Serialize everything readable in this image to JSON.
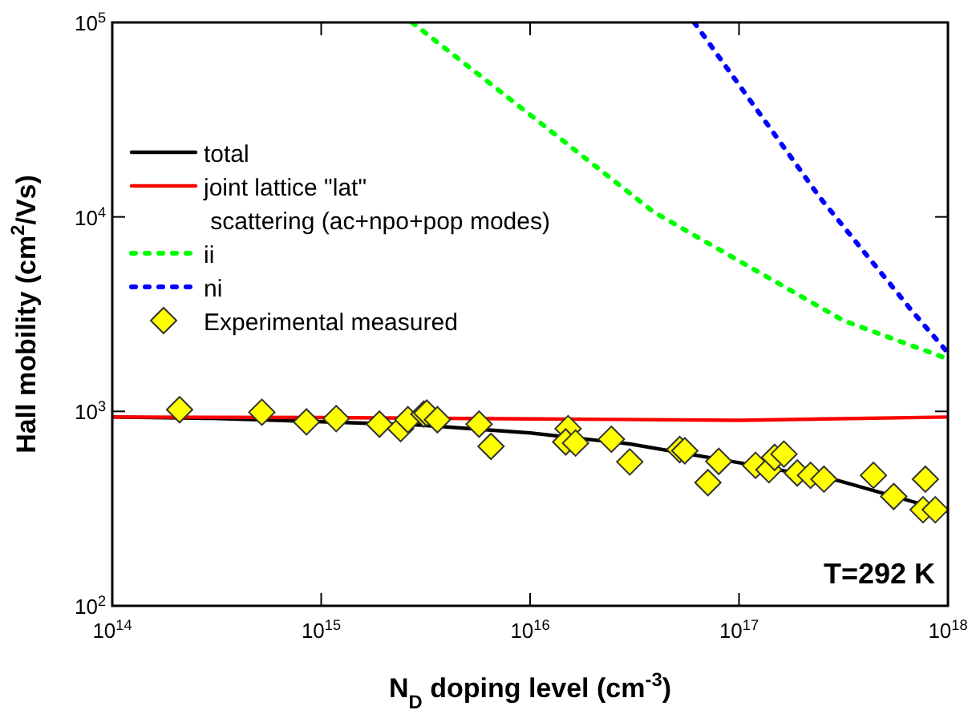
{
  "chart_data": {
    "type": "line",
    "xlabel": "N$_{D}$ doping level (cm$^{-3}$)",
    "ylabel": "Hall mobility (cm$^{2}$/Vs)",
    "log": "xy",
    "xlim": [
      100000000000000.0,
      1e+18
    ],
    "ylim": [
      100,
      100000
    ],
    "xticks": [
      {
        "value": 100000000000000.0,
        "label": "10$^{14}$"
      },
      {
        "value": 1000000000000000.0,
        "label": "10$^{15}$"
      },
      {
        "value": 1e+16,
        "label": "10$^{16}$"
      },
      {
        "value": 1e+17,
        "label": "10$^{17}$"
      },
      {
        "value": 1e+18,
        "label": "10$^{18}$"
      }
    ],
    "yticks": [
      {
        "value": 100,
        "label": "10$^{2}$"
      },
      {
        "value": 1000,
        "label": "10$^{3}$"
      },
      {
        "value": 10000,
        "label": "10$^{4}$"
      },
      {
        "value": 100000,
        "label": "10$^{5}$"
      }
    ],
    "grid": false,
    "legend": "left",
    "annotations": [
      "T=292 K"
    ],
    "series": [
      {
        "name": "total",
        "color": "#000000",
        "line_style": "solid",
        "marker": "none",
        "x": [
          100000000000000.0,
          300000000000000.0,
          1000000000000000.0,
          3000000000000000.0,
          1e+16,
          3e+16,
          1e+17,
          3e+17,
          1e+18
        ],
        "values": [
          935,
          920,
          885,
          850,
          775,
          680,
          545,
          440,
          305
        ]
      },
      {
        "name": "joint lattice \"lat\"\n scattering (ac+npo+pop modes)",
        "color": "#ff0000",
        "line_style": "solid",
        "marker": "none",
        "x": [
          100000000000000.0,
          1000000000000000.0,
          1e+16,
          1e+17,
          1e+18
        ],
        "values": [
          935,
          930,
          915,
          900,
          935
        ]
      },
      {
        "name": "ii",
        "color": "#00ff00",
        "line_style": "dotted",
        "marker": "none",
        "x": [
          2720000000000000.0,
          1e+16,
          3.9e+16,
          3.16e+17,
          1e+18
        ],
        "values": [
          100000,
          33500,
          10600,
          2930,
          1860
        ]
      },
      {
        "name": "ni",
        "color": "#0000ff",
        "line_style": "dotted",
        "marker": "none",
        "x": [
          6.1e+16,
          2.45e+17,
          6.8e+17,
          1e+18
        ],
        "values": [
          100000,
          12500,
          3240,
          2000
        ]
      },
      {
        "name": "Experimental measured",
        "type": "scatter",
        "color": "#ffff00",
        "marker": "diamond",
        "x": [
          210000000000000.0,
          520000000000000.0,
          850000000000000.0,
          1180000000000000.0,
          1900000000000000.0,
          2400000000000000.0,
          2600000000000000.0,
          3100000000000000.0,
          3200000000000000.0,
          3600000000000000.0,
          5700000000000000.0,
          6500000000000000.0,
          1.52e+16,
          1.48e+16,
          1.65e+16,
          2.45e+16,
          3e+16,
          5.2e+16,
          5.5e+16,
          7.1e+16,
          8e+16,
          1.2e+17,
          1.39e+17,
          1.48e+17,
          1.64e+17,
          1.9e+17,
          2.2e+17,
          2.55e+17,
          4.4e+17,
          5.5e+17,
          7.8e+17,
          7.6e+17,
          8.7e+17
        ],
        "values": [
          1020,
          990,
          883,
          918,
          860,
          815,
          906,
          968,
          980,
          906,
          860,
          661,
          815,
          696,
          687,
          719,
          550,
          636,
          627,
          430,
          553,
          528,
          501,
          580,
          603,
          482,
          469,
          448,
          469,
          365,
          448,
          312,
          312
        ]
      }
    ]
  }
}
